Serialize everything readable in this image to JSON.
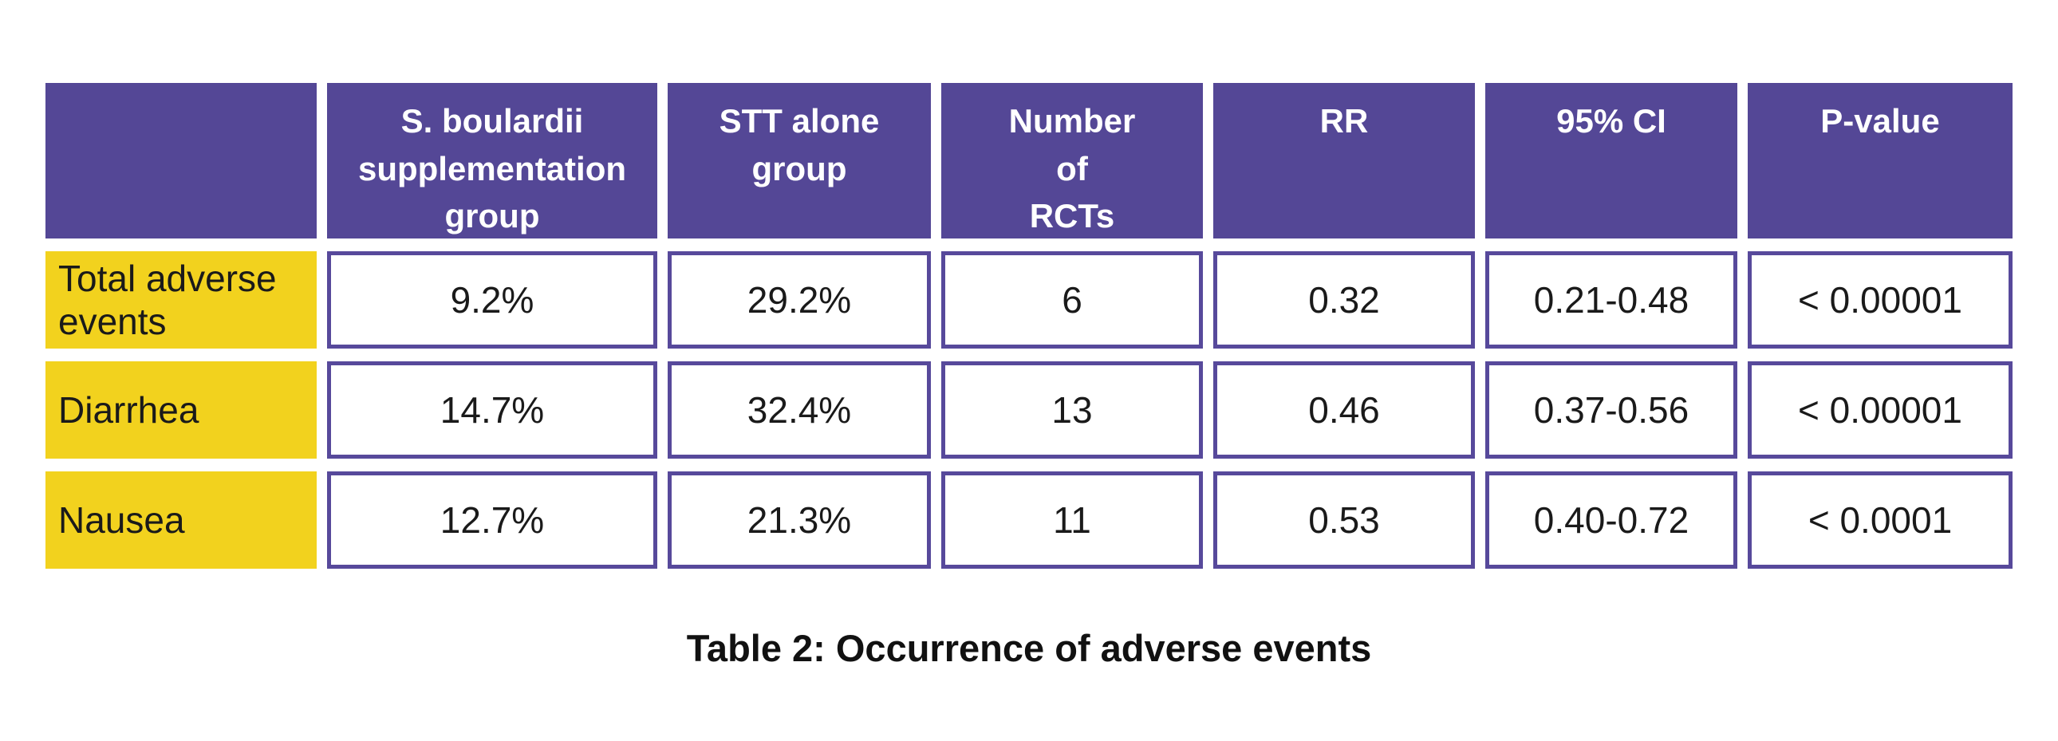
{
  "caption": "Table 2: Occurrence of adverse events",
  "colors": {
    "purple": "#544796",
    "cellBorder": "#57499B",
    "yellow": "#F2D21E",
    "textDark": "#1A1A1A",
    "pageBg": "#FFFFFF"
  },
  "table": {
    "headers": [
      "",
      "S. boulardii\nsupplementation\ngroup",
      "STT alone\ngroup",
      "Number\nof\nRCTs",
      "RR",
      "95% CI",
      "P-value"
    ],
    "rows": [
      {
        "label": "Total adverse events",
        "values": [
          "9.2%",
          "29.2%",
          "6",
          "0.32",
          "0.21-0.48",
          "< 0.00001"
        ]
      },
      {
        "label": "Diarrhea",
        "values": [
          "14.7%",
          "32.4%",
          "13",
          "0.46",
          "0.37-0.56",
          "< 0.00001"
        ]
      },
      {
        "label": "Nausea",
        "values": [
          "12.7%",
          "21.3%",
          "11",
          "0.53",
          "0.40-0.72",
          "< 0.0001"
        ]
      }
    ]
  },
  "chart_data": {
    "type": "table",
    "title": "Table 2: Occurrence of adverse events",
    "columns": [
      "",
      "S. boulardii supplementation group",
      "STT alone group",
      "Number of RCTs",
      "RR",
      "95% CI",
      "P-value"
    ],
    "rows": [
      [
        "Total adverse events",
        "9.2%",
        "29.2%",
        6,
        0.32,
        "0.21-0.48",
        "< 0.00001"
      ],
      [
        "Diarrhea",
        "14.7%",
        "32.4%",
        13,
        0.46,
        "0.37-0.56",
        "< 0.00001"
      ],
      [
        "Nausea",
        "12.7%",
        "21.3%",
        11,
        0.53,
        "0.40-0.72",
        "< 0.0001"
      ]
    ],
    "legend_position": "none",
    "grid": false
  }
}
